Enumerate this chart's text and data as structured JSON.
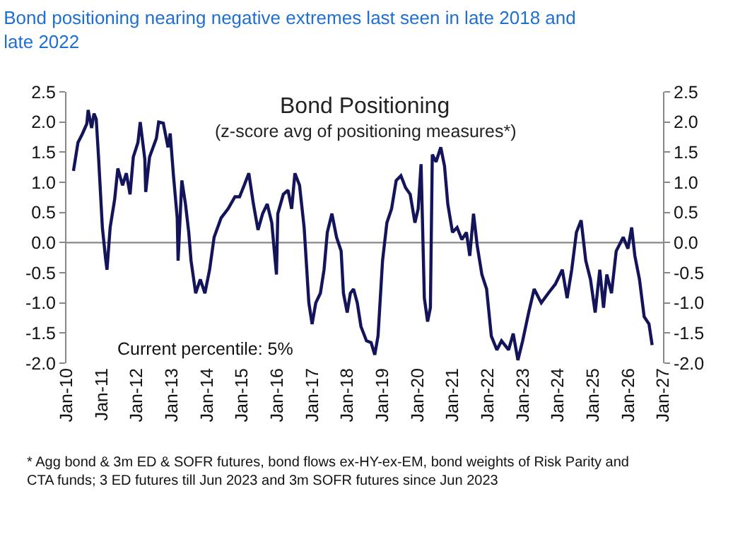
{
  "chart_data": {
    "type": "line",
    "title": "Bond positioning nearing negative extremes last seen in late 2018 and late 2022",
    "subtitle": "Bond Positioning",
    "annotations": [
      "(z-score avg of positioning measures*)",
      "Current percentile: 5%",
      "* Agg bond & 3m ED & SOFR futures, bond flows ex-HY-ex-EM, bond weights of Risk Parity and CTA funds; 3 ED futures till Jun 2023 and 3m SOFR futures since Jun 2023"
    ],
    "x": [
      "2010-03-15",
      "2010-05-01",
      "2010-06-15",
      "2010-08-01",
      "2010-08-15",
      "2010-09-20",
      "2010-10-15",
      "2010-11-07",
      "2010-12-01",
      "2011-01-10",
      "2011-02-12",
      "2011-02-27",
      "2011-04-01",
      "2011-05-18",
      "2011-06-20",
      "2011-08-08",
      "2011-09-16",
      "2011-10-25",
      "2011-11-28",
      "2012-01-15",
      "2012-02-08",
      "2012-03-27",
      "2012-04-05",
      "2012-05-15",
      "2012-07-25",
      "2012-08-18",
      "2012-10-05",
      "2012-11-23",
      "2012-12-16",
      "2013-01-19",
      "2013-02-27",
      "2013-03-08",
      "2013-04-16",
      "2013-05-24",
      "2013-06-27",
      "2013-07-21",
      "2013-09-07",
      "2013-10-25",
      "2013-12-12",
      "2014-01-30",
      "2014-03-18",
      "2014-05-30",
      "2014-08-10",
      "2014-10-21",
      "2014-12-08",
      "2015-01-25",
      "2015-03-14",
      "2015-05-01",
      "2015-06-18",
      "2015-08-05",
      "2015-09-22",
      "2015-11-08",
      "2015-12-27",
      "2016-01-10",
      "2016-03-07",
      "2016-04-25",
      "2016-06-02",
      "2016-07-06",
      "2016-08-23",
      "2016-10-10",
      "2016-11-28",
      "2017-01-01",
      "2017-02-08",
      "2017-03-28",
      "2017-05-05",
      "2017-06-08",
      "2017-07-26",
      "2017-09-12",
      "2017-10-30",
      "2017-11-23",
      "2018-01-01",
      "2018-02-03",
      "2018-03-08",
      "2018-04-16",
      "2018-05-24",
      "2018-07-21",
      "2018-09-07",
      "2018-10-15",
      "2018-11-18",
      "2019-01-04",
      "2019-02-18",
      "2019-04-08",
      "2019-05-26",
      "2019-07-14",
      "2019-09-01",
      "2019-10-19",
      "2019-12-07",
      "2020-01-10",
      "2020-02-09",
      "2020-03-14",
      "2020-04-17",
      "2020-05-16",
      "2020-06-05",
      "2020-07-14",
      "2020-09-01",
      "2020-10-10",
      "2020-11-13",
      "2021-01-01",
      "2021-02-18",
      "2021-04-08",
      "2021-05-26",
      "2021-06-30",
      "2021-08-08",
      "2021-09-16",
      "2021-11-03",
      "2021-12-22",
      "2022-02-09",
      "2022-04-08",
      "2022-05-26",
      "2022-08-08",
      "2022-09-25",
      "2022-11-13",
      "2023-01-01",
      "2023-03-05",
      "2023-05-01",
      "2023-07-14",
      "2023-09-25",
      "2023-12-07",
      "2024-02-18",
      "2024-04-08",
      "2024-05-26",
      "2024-07-14",
      "2024-09-01",
      "2024-10-19",
      "2024-12-07",
      "2025-01-25",
      "2025-03-14",
      "2025-04-22",
      "2025-05-26",
      "2025-07-14",
      "2025-09-01",
      "2025-11-13",
      "2026-01-01",
      "2026-02-09",
      "2026-03-14",
      "2026-05-01",
      "2026-06-19",
      "2026-08-08",
      "2026-09-10"
    ],
    "series": [
      {
        "color": "#14145a",
        "values": [
          1.19,
          1.66,
          1.8,
          1.97,
          2.2,
          1.9,
          2.14,
          2.05,
          1.42,
          0.25,
          -0.26,
          -0.45,
          0.25,
          0.72,
          1.23,
          0.95,
          1.15,
          0.8,
          1.42,
          1.66,
          2.0,
          1.38,
          0.84,
          1.42,
          1.73,
          2.0,
          1.98,
          1.58,
          1.81,
          1.11,
          0.41,
          -0.3,
          1.03,
          0.64,
          0.17,
          -0.3,
          -0.84,
          -0.61,
          -0.84,
          -0.45,
          0.09,
          0.41,
          0.56,
          0.76,
          0.76,
          0.95,
          1.15,
          0.64,
          0.21,
          0.48,
          0.64,
          0.33,
          -0.53,
          0.48,
          0.8,
          0.87,
          0.56,
          1.15,
          0.95,
          0.25,
          -1.0,
          -1.35,
          -1.0,
          -0.84,
          -0.45,
          0.17,
          0.48,
          0.09,
          -0.14,
          -0.84,
          -1.16,
          -0.84,
          -0.77,
          -1.0,
          -1.39,
          -1.63,
          -1.66,
          -1.86,
          -1.55,
          -0.3,
          0.33,
          0.56,
          1.03,
          1.11,
          0.91,
          0.8,
          0.33,
          0.56,
          1.3,
          -0.92,
          -1.31,
          -1.08,
          1.46,
          1.34,
          1.58,
          1.27,
          0.64,
          0.17,
          0.25,
          0.05,
          0.17,
          -0.22,
          0.48,
          -0.06,
          -0.53,
          -0.77,
          -1.55,
          -1.78,
          -1.63,
          -1.78,
          -1.51,
          -1.95,
          -1.63,
          -1.16,
          -0.77,
          -1.0,
          -0.84,
          -0.69,
          -0.45,
          -0.92,
          -0.45,
          0.17,
          0.37,
          -0.3,
          -0.61,
          -1.16,
          -0.45,
          -1.08,
          -0.53,
          -0.84,
          -0.14,
          0.09,
          -0.1,
          0.25,
          -0.22,
          -0.61,
          -1.23,
          -1.35,
          -1.7
        ]
      }
    ],
    "xlim": [
      "2010-01-01",
      "2027-01-01"
    ],
    "xticks": [
      {
        "value": "2010-01-01",
        "label": "Jan-10"
      },
      {
        "value": "2011-01-01",
        "label": "Jan-11"
      },
      {
        "value": "2012-01-01",
        "label": "Jan-12"
      },
      {
        "value": "2013-01-01",
        "label": "Jan-13"
      },
      {
        "value": "2014-01-01",
        "label": "Jan-14"
      },
      {
        "value": "2015-01-01",
        "label": "Jan-15"
      },
      {
        "value": "2016-01-01",
        "label": "Jan-16"
      },
      {
        "value": "2017-01-01",
        "label": "Jan-17"
      },
      {
        "value": "2018-01-01",
        "label": "Jan-18"
      },
      {
        "value": "2019-01-01",
        "label": "Jan-19"
      },
      {
        "value": "2020-01-01",
        "label": "Jan-20"
      },
      {
        "value": "2021-01-01",
        "label": "Jan-21"
      },
      {
        "value": "2022-01-01",
        "label": "Jan-22"
      },
      {
        "value": "2023-01-01",
        "label": "Jan-23"
      },
      {
        "value": "2024-01-01",
        "label": "Jan-24"
      },
      {
        "value": "2025-01-01",
        "label": "Jan-25"
      },
      {
        "value": "2026-01-01",
        "label": "Jan-26"
      },
      {
        "value": "2027-01-01",
        "label": "Jan-27"
      }
    ],
    "ylim": [
      -2.0,
      2.5
    ],
    "yticks": [
      {
        "value": -2,
        "label": "-2.0"
      },
      {
        "value": -1.5,
        "label": "-1.5"
      },
      {
        "value": -1,
        "label": "-1.0"
      },
      {
        "value": -0.5,
        "label": "-0.5"
      },
      {
        "value": 0,
        "label": "0.0"
      },
      {
        "value": 0.5,
        "label": "0.5"
      },
      {
        "value": 1,
        "label": "1.0"
      },
      {
        "value": 1.5,
        "label": "1.5"
      },
      {
        "value": 2,
        "label": "2.0"
      },
      {
        "value": 2.5,
        "label": "2.5"
      }
    ],
    "y2lim": [
      -2.0,
      2.5
    ],
    "y2ticks": [
      {
        "value": -2,
        "label": "-2.0"
      },
      {
        "value": -1.5,
        "label": "-1.5"
      },
      {
        "value": -1,
        "label": "-1.0"
      },
      {
        "value": -0.5,
        "label": "-0.5"
      },
      {
        "value": 0,
        "label": "0.0"
      },
      {
        "value": 0.5,
        "label": "0.5"
      },
      {
        "value": 1,
        "label": "1.0"
      },
      {
        "value": 1.5,
        "label": "1.5"
      },
      {
        "value": 2,
        "label": "2.0"
      },
      {
        "value": 2.5,
        "label": "2.5"
      }
    ],
    "ref_lines": [
      {
        "axis": "y",
        "value": 0,
        "color": "#888888"
      }
    ],
    "grid": false
  }
}
